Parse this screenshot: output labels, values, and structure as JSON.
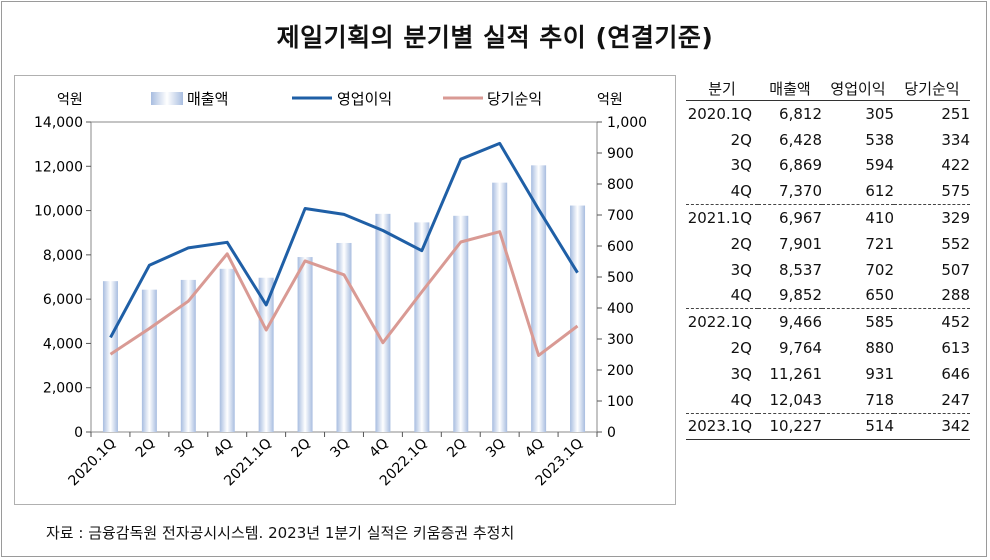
{
  "title": "제일기획의 분기별 실적 추이 (연결기준)",
  "source": "자료 : 금융감독원 전자공시시스템. 2023년 1분기 실적은 키움증권 추정치",
  "chart_data": {
    "type": "bar+line",
    "categories": [
      "2020.1Q",
      "2Q",
      "3Q",
      "4Q",
      "2021.1Q",
      "2Q",
      "3Q",
      "4Q",
      "2022.1Q",
      "2Q",
      "3Q",
      "4Q",
      "2023.1Q"
    ],
    "left_axis_label": "억원",
    "right_axis_label": "억원",
    "left_ylim": [
      0,
      14000
    ],
    "left_ticks": [
      "0",
      "2,000",
      "4,000",
      "6,000",
      "8,000",
      "10,000",
      "12,000",
      "14,000"
    ],
    "right_ylim": [
      0,
      1000
    ],
    "right_ticks": [
      "0",
      "100",
      "200",
      "300",
      "400",
      "500",
      "600",
      "700",
      "800",
      "900",
      "1,000"
    ],
    "legend_position": "top",
    "series": [
      {
        "name": "매출액",
        "kind": "bar",
        "axis": "left",
        "color": "#a8bde0",
        "values": [
          6812,
          6428,
          6869,
          7370,
          6967,
          7901,
          8537,
          9852,
          9466,
          9764,
          11261,
          12043,
          10227
        ]
      },
      {
        "name": "영업이익",
        "kind": "line",
        "axis": "right",
        "color": "#1f5fa6",
        "values": [
          305,
          538,
          594,
          612,
          410,
          721,
          702,
          650,
          585,
          880,
          931,
          718,
          514
        ]
      },
      {
        "name": "당기순익",
        "kind": "line",
        "axis": "right",
        "color": "#d99a94",
        "values": [
          251,
          334,
          422,
          575,
          329,
          552,
          507,
          288,
          452,
          613,
          646,
          247,
          342
        ]
      }
    ]
  },
  "table": {
    "headers": [
      "분기",
      "매출액",
      "영업이익",
      "당기순익"
    ],
    "rows": [
      [
        "2020.1Q",
        "6,812",
        "305",
        "251"
      ],
      [
        "2Q",
        "6,428",
        "538",
        "334"
      ],
      [
        "3Q",
        "6,869",
        "594",
        "422"
      ],
      [
        "4Q",
        "7,370",
        "612",
        "575"
      ],
      [
        "2021.1Q",
        "6,967",
        "410",
        "329"
      ],
      [
        "2Q",
        "7,901",
        "721",
        "552"
      ],
      [
        "3Q",
        "8,537",
        "702",
        "507"
      ],
      [
        "4Q",
        "9,852",
        "650",
        "288"
      ],
      [
        "2022.1Q",
        "9,466",
        "585",
        "452"
      ],
      [
        "2Q",
        "9,764",
        "880",
        "613"
      ],
      [
        "3Q",
        "11,261",
        "931",
        "646"
      ],
      [
        "4Q",
        "12,043",
        "718",
        "247"
      ],
      [
        "2023.1Q",
        "10,227",
        "514",
        "342"
      ]
    ]
  }
}
